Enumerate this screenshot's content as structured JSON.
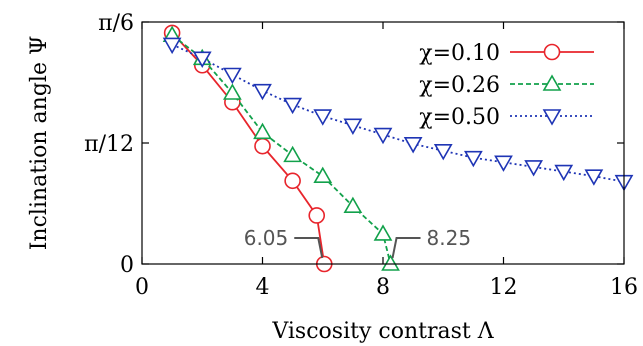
{
  "chart_data": {
    "type": "line",
    "xlabel": "Viscosity contrast Λ",
    "ylabel": "Inclination angle Ψ",
    "xlim": [
      0,
      16
    ],
    "ylim": [
      0,
      0.5235987756
    ],
    "x_ticks": [
      {
        "value": 0,
        "label": "0"
      },
      {
        "value": 4,
        "label": "4"
      },
      {
        "value": 8,
        "label": "8"
      },
      {
        "value": 12,
        "label": "12"
      },
      {
        "value": 16,
        "label": "16"
      }
    ],
    "y_ticks": [
      {
        "value": 0,
        "label": "0"
      },
      {
        "value": 0.2617993878,
        "label": "π/12"
      },
      {
        "value": 0.5235987756,
        "label": "π/6"
      }
    ],
    "legend_position": "top-right",
    "series": [
      {
        "name": "χ=0.10",
        "color": "#e8252c",
        "marker": "circle",
        "dash": "",
        "x": [
          1,
          2,
          3,
          4,
          5,
          5.8,
          6.05
        ],
        "y": [
          0.5,
          0.43,
          0.35,
          0.255,
          0.18,
          0.105,
          0.0
        ]
      },
      {
        "name": "χ=0.26",
        "color": "#12a14b",
        "marker": "triangle-up",
        "dash": "5,3",
        "x": [
          1,
          2,
          3,
          4,
          5,
          6,
          7,
          8,
          8.25
        ],
        "y": [
          0.495,
          0.445,
          0.37,
          0.285,
          0.235,
          0.19,
          0.125,
          0.065,
          0.0
        ]
      },
      {
        "name": "χ=0.50",
        "color": "#1f35b5",
        "marker": "triangle-down",
        "dash": "2,3",
        "x": [
          1,
          2,
          3,
          4,
          5,
          6,
          7,
          8,
          9,
          10,
          11,
          12,
          13,
          14,
          15,
          16
        ],
        "y": [
          0.475,
          0.445,
          0.41,
          0.375,
          0.345,
          0.32,
          0.3,
          0.28,
          0.26,
          0.245,
          0.23,
          0.22,
          0.21,
          0.2,
          0.19,
          0.178
        ]
      }
    ],
    "annotations": [
      {
        "text": "6.05",
        "x": 6.05,
        "y": 0.0,
        "side": "left"
      },
      {
        "text": "8.25",
        "x": 8.25,
        "y": 0.0,
        "side": "right"
      }
    ]
  }
}
